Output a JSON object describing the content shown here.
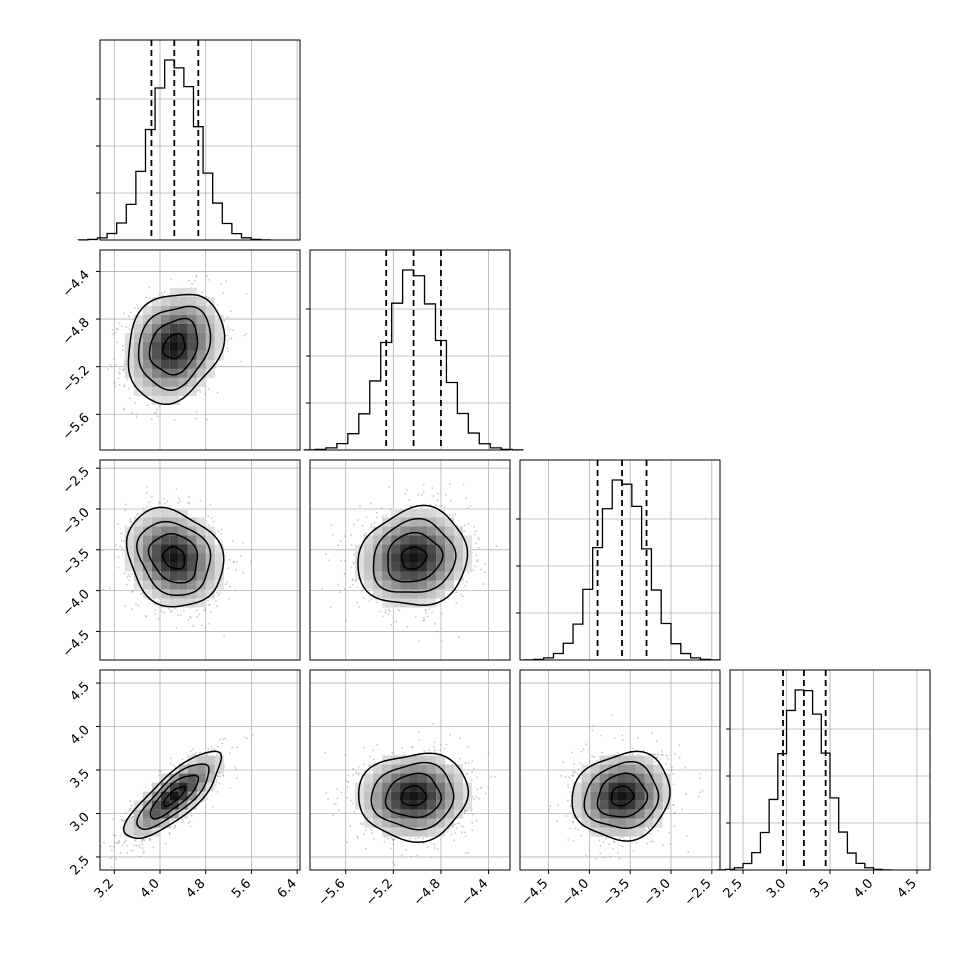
{
  "chart_data": {
    "type": "corner",
    "title": "",
    "parameters": [
      {
        "xticks": [
          3.2,
          4.0,
          4.8,
          5.6,
          6.4
        ],
        "xlim": [
          2.95,
          6.45
        ],
        "mean": 4.25,
        "sd": 0.42,
        "quantiles": [
          3.85,
          4.25,
          4.67
        ]
      },
      {
        "xticks": [
          -5.6,
          -5.2,
          -4.8,
          -4.4
        ],
        "yticks": [
          -4.4,
          -4.8,
          -5.2,
          -5.6
        ],
        "xlim": [
          -5.9,
          -4.22
        ],
        "mean": -5.03,
        "sd": 0.23,
        "quantiles": [
          -5.26,
          -5.03,
          -4.8
        ]
      },
      {
        "xticks": [
          -4.5,
          -4.0,
          -3.5,
          -3.0,
          -2.5
        ],
        "yticks": [
          -2.5,
          -3.0,
          -3.5,
          -4.0,
          -4.5
        ],
        "xlim": [
          -4.85,
          -2.4
        ],
        "mean": -3.6,
        "sd": 0.3,
        "quantiles": [
          -3.9,
          -3.6,
          -3.3
        ]
      },
      {
        "xticks": [
          2.5,
          3.0,
          3.5,
          4.0,
          4.5
        ],
        "yticks": [
          2.5,
          3.0,
          3.5,
          4.0,
          4.5
        ],
        "xlim": [
          2.35,
          4.65
        ],
        "mean": 3.2,
        "sd": 0.25,
        "quantiles": [
          2.96,
          3.2,
          3.45
        ]
      }
    ],
    "correlations": {
      "1-0": 0.2,
      "2-0": -0.18,
      "2-1": 0.1,
      "3-0": 0.8,
      "3-1": 0.05,
      "3-2": 0.1
    },
    "grid": true,
    "colors": {
      "line": "#000000",
      "scatter": "#9a9a9a",
      "grid": "#b0b0b0",
      "frame": "#000000"
    }
  }
}
